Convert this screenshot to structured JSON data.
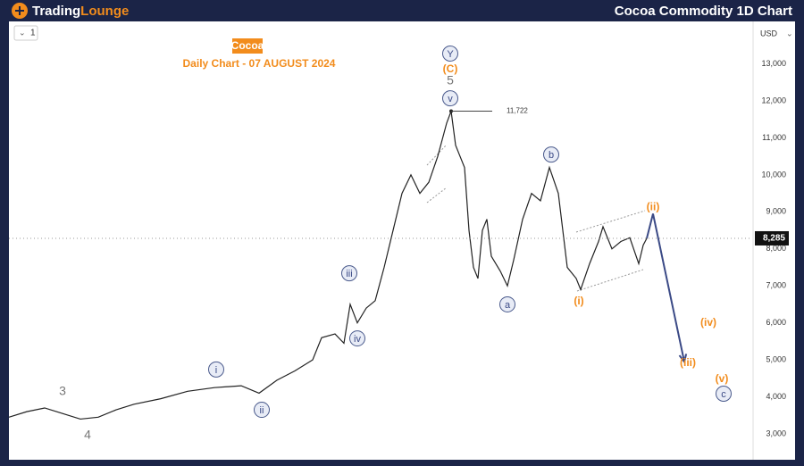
{
  "header": {
    "brand_first": "Trading",
    "brand_second": "Lounge",
    "title": "Cocoa Commodity 1D Chart"
  },
  "ui": {
    "interval": "1",
    "currency": "USD"
  },
  "chart_data": {
    "type": "line",
    "title": "Cocoa",
    "subtitle": "Daily Chart - 07 AUGUST 2024",
    "xlim": [
      0,
      415
    ],
    "ylim": [
      2300,
      14148
    ],
    "yticks": [
      {
        "value": 3000,
        "label": "3,000"
      },
      {
        "value": 4000,
        "label": "4,000"
      },
      {
        "value": 5000,
        "label": "5,000"
      },
      {
        "value": 6000,
        "label": "6,000"
      },
      {
        "value": 7000,
        "label": "7,000"
      },
      {
        "value": 8000,
        "label": "8,000"
      },
      {
        "value": 9000,
        "label": "9,000"
      },
      {
        "value": 10000,
        "label": "10,000"
      },
      {
        "value": 11000,
        "label": "11,000"
      },
      {
        "value": 12000,
        "label": "12,000"
      },
      {
        "value": 13000,
        "label": "13,000"
      }
    ],
    "series": [
      {
        "color": "#222222",
        "x": [
          0,
          10,
          20,
          30,
          40,
          50,
          60,
          70,
          85,
          100,
          115,
          130,
          140,
          150,
          160,
          170,
          175,
          182.5,
          187.5,
          191,
          195,
          200,
          205,
          210,
          215,
          220,
          225,
          230,
          235,
          240,
          245,
          247.5,
          250,
          252.5,
          255,
          257.5,
          260,
          262.5,
          265,
          267.5,
          270,
          275,
          279,
          282.5,
          287.5,
          292.5,
          297.5,
          302.5,
          307.5,
          312.5,
          317.5,
          320,
          325,
          330,
          332.5,
          337.5,
          342.5,
          347.5,
          352.5,
          355,
          357
        ],
        "values": [
          3450,
          3600,
          3700,
          3550,
          3400,
          3450,
          3650,
          3800,
          3950,
          4150,
          4250,
          4300,
          4100,
          4450,
          4700,
          5000,
          5600,
          5700,
          5450,
          6500,
          6000,
          6400,
          6600,
          7500,
          8500,
          9500,
          10000,
          9500,
          9800,
          10500,
          11400,
          11722,
          10800,
          10500,
          10200,
          8500,
          7500,
          7200,
          8500,
          8800,
          7800,
          7400,
          7000,
          7700,
          8800,
          9500,
          9300,
          10200,
          9500,
          7500,
          7200,
          6900,
          7600,
          8200,
          8600,
          8000,
          8200,
          8300,
          7600,
          8100,
          8285
        ]
      },
      {
        "color": "#3b4a86",
        "x": [
          357,
          360.5,
          378
        ],
        "values": [
          8285,
          8950,
          4950
        ]
      }
    ],
    "peak": {
      "value": 11722,
      "label": "11,722"
    },
    "current": {
      "value": 8285,
      "label": "8,285"
    },
    "annotations": [
      {
        "text": "3",
        "x": 30,
        "y": 4157,
        "style": "plain"
      },
      {
        "text": "4",
        "x": 44,
        "y": 2975,
        "style": "plain"
      },
      {
        "text": "i",
        "x": 116,
        "y": 4740,
        "style": "circle"
      },
      {
        "text": "ii",
        "x": 141.5,
        "y": 3650,
        "style": "circle"
      },
      {
        "text": "iii",
        "x": 190.5,
        "y": 7340,
        "style": "circle"
      },
      {
        "text": "iv",
        "x": 195,
        "y": 5580,
        "style": "circle"
      },
      {
        "text": "v",
        "x": 247,
        "y": 12070,
        "style": "circle"
      },
      {
        "text": "5",
        "x": 247,
        "y": 12555,
        "style": "plain"
      },
      {
        "text": "(C)",
        "x": 247,
        "y": 12870,
        "style": "orange"
      },
      {
        "text": "Y",
        "x": 247,
        "y": 13280,
        "style": "circle"
      },
      {
        "text": "a",
        "x": 279,
        "y": 6500,
        "style": "circle"
      },
      {
        "text": "b",
        "x": 303.5,
        "y": 10550,
        "style": "circle"
      },
      {
        "text": "(i)",
        "x": 319,
        "y": 6600,
        "style": "orange"
      },
      {
        "text": "(ii)",
        "x": 360.5,
        "y": 9150,
        "style": "orange"
      },
      {
        "text": "(iii)",
        "x": 380,
        "y": 4930,
        "style": "orange"
      },
      {
        "text": "(iv)",
        "x": 391.5,
        "y": 6015,
        "style": "orange"
      },
      {
        "text": "(v)",
        "x": 399,
        "y": 4500,
        "style": "orange"
      },
      {
        "text": "c",
        "x": 400,
        "y": 4085,
        "style": "circle"
      }
    ]
  }
}
